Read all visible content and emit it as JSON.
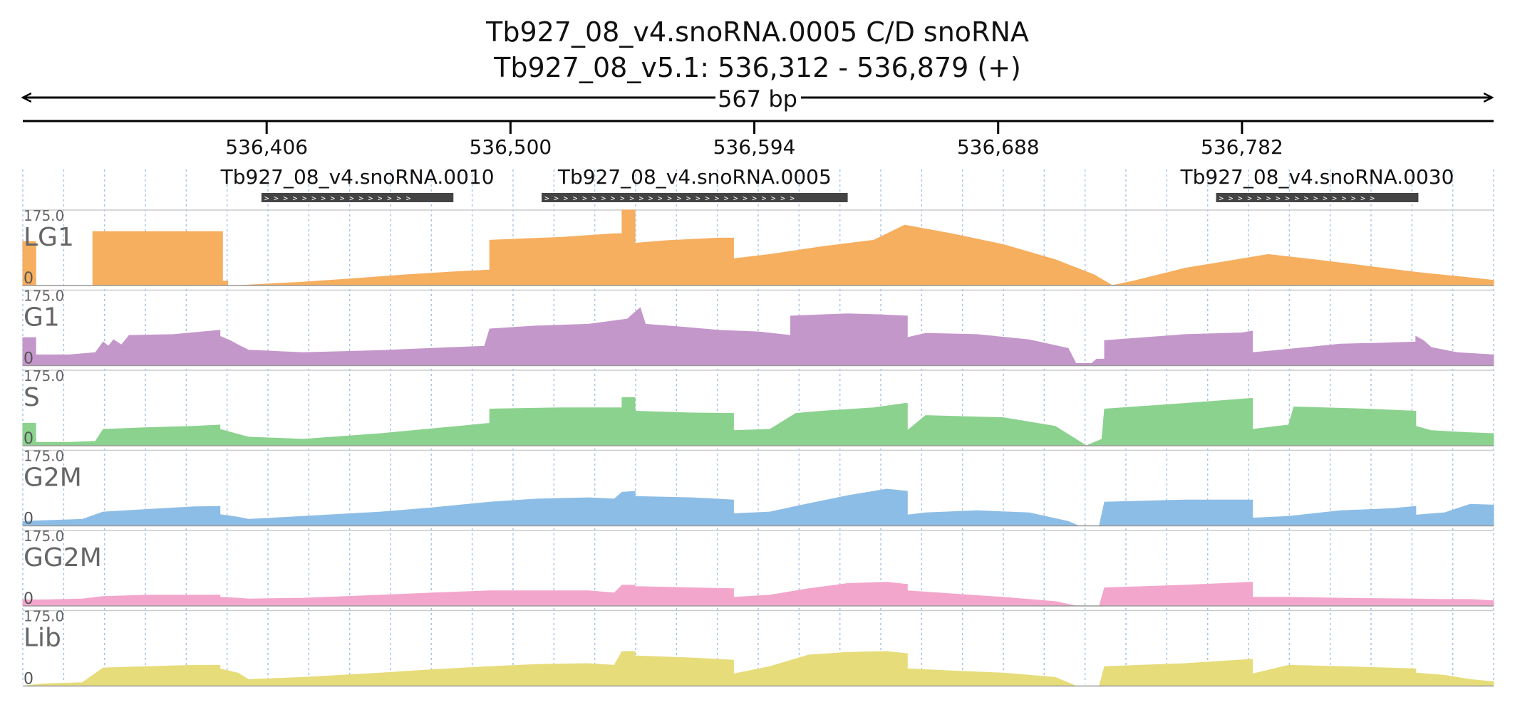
{
  "title": {
    "line1": "Tb927_08_v4.snoRNA.0005  C/D snoRNA",
    "line2": "Tb927_08_v5.1: 536,312 - 536,879 (+)"
  },
  "ruler": {
    "span_label": "567 bp"
  },
  "chart_data": {
    "type": "area",
    "region": {
      "chrom": "Tb927_08_v5.1",
      "start": 536312,
      "end": 536879,
      "strand": "+"
    },
    "x_ticks": [
      536406,
      536500,
      536594,
      536688,
      536782
    ],
    "x_tick_labels": [
      "536,406",
      "536,500",
      "536,594",
      "536,688",
      "536,782"
    ],
    "features": [
      {
        "name": "Tb927_08_v4.snoRNA.0010",
        "start": 536404,
        "end": 536478,
        "strand": "+"
      },
      {
        "name": "Tb927_08_v4.snoRNA.0005",
        "start": 536512,
        "end": 536630,
        "strand": "+"
      },
      {
        "name": "Tb927_08_v4.snoRNA.0030",
        "start": 536772,
        "end": 536850,
        "strand": "+"
      }
    ],
    "y_range": [
      0,
      175
    ],
    "y_max_label": "175.0",
    "y_min_label": "0",
    "grid": true,
    "series": [
      {
        "name": "LG1",
        "color": "#f6ae5f",
        "points": [
          [
            536312,
            102
          ],
          [
            536317,
            102
          ],
          [
            536317,
            0
          ],
          [
            536339,
            0
          ],
          [
            536339,
            125
          ],
          [
            536389,
            125
          ],
          [
            536389,
            10
          ],
          [
            536391,
            10
          ],
          [
            536391,
            0
          ],
          [
            536395,
            0
          ],
          [
            536420,
            8
          ],
          [
            536440,
            16
          ],
          [
            536460,
            25
          ],
          [
            536479,
            32
          ],
          [
            536492,
            36
          ],
          [
            536492,
            105
          ],
          [
            536520,
            112
          ],
          [
            536540,
            120
          ],
          [
            536543,
            120
          ],
          [
            536543,
            175
          ],
          [
            536548,
            175
          ],
          [
            536548,
            98
          ],
          [
            536560,
            104
          ],
          [
            536580,
            110
          ],
          [
            536586,
            110
          ],
          [
            536586,
            62
          ],
          [
            536600,
            72
          ],
          [
            536620,
            90
          ],
          [
            536640,
            105
          ],
          [
            536652,
            140
          ],
          [
            536670,
            120
          ],
          [
            536690,
            95
          ],
          [
            536710,
            60
          ],
          [
            536725,
            25
          ],
          [
            536732,
            0
          ],
          [
            536740,
            10
          ],
          [
            536760,
            40
          ],
          [
            536780,
            60
          ],
          [
            536792,
            72
          ],
          [
            536810,
            60
          ],
          [
            536830,
            45
          ],
          [
            536850,
            30
          ],
          [
            536870,
            18
          ],
          [
            536879,
            12
          ]
        ]
      },
      {
        "name": "G1",
        "color": "#c497cb",
        "points": [
          [
            536312,
            65
          ],
          [
            536317,
            65
          ],
          [
            536317,
            25
          ],
          [
            536330,
            25
          ],
          [
            536340,
            30
          ],
          [
            536343,
            55
          ],
          [
            536345,
            45
          ],
          [
            536347,
            60
          ],
          [
            536350,
            48
          ],
          [
            536353,
            70
          ],
          [
            536370,
            72
          ],
          [
            536388,
            82
          ],
          [
            536388,
            68
          ],
          [
            536392,
            58
          ],
          [
            536395,
            48
          ],
          [
            536399,
            36
          ],
          [
            536420,
            30
          ],
          [
            536450,
            35
          ],
          [
            536490,
            45
          ],
          [
            536492,
            85
          ],
          [
            536510,
            92
          ],
          [
            536530,
            96
          ],
          [
            536545,
            108
          ],
          [
            536550,
            134
          ],
          [
            536552,
            96
          ],
          [
            536565,
            90
          ],
          [
            536580,
            82
          ],
          [
            536596,
            78
          ],
          [
            536608,
            70
          ],
          [
            536608,
            115
          ],
          [
            536630,
            120
          ],
          [
            536642,
            118
          ],
          [
            536653,
            115
          ],
          [
            536653,
            65
          ],
          [
            536660,
            75
          ],
          [
            536680,
            72
          ],
          [
            536700,
            60
          ],
          [
            536715,
            40
          ],
          [
            536718,
            5
          ],
          [
            536724,
            5
          ],
          [
            536726,
            15
          ],
          [
            536729,
            15
          ],
          [
            536729,
            58
          ],
          [
            536760,
            72
          ],
          [
            536782,
            76
          ],
          [
            536786,
            80
          ],
          [
            536786,
            30
          ],
          [
            536800,
            38
          ],
          [
            536820,
            50
          ],
          [
            536835,
            52
          ],
          [
            536849,
            55
          ],
          [
            536849,
            68
          ],
          [
            536852,
            58
          ],
          [
            536855,
            42
          ],
          [
            536865,
            30
          ],
          [
            536879,
            25
          ]
        ]
      },
      {
        "name": "S",
        "color": "#8bd28e",
        "points": [
          [
            536312,
            52
          ],
          [
            536317,
            52
          ],
          [
            536317,
            8
          ],
          [
            536330,
            8
          ],
          [
            536340,
            10
          ],
          [
            536343,
            38
          ],
          [
            536360,
            42
          ],
          [
            536378,
            45
          ],
          [
            536388,
            48
          ],
          [
            536388,
            38
          ],
          [
            536394,
            28
          ],
          [
            536399,
            20
          ],
          [
            536420,
            15
          ],
          [
            536450,
            28
          ],
          [
            536480,
            45
          ],
          [
            536492,
            52
          ],
          [
            536492,
            85
          ],
          [
            536520,
            88
          ],
          [
            536540,
            88
          ],
          [
            536543,
            88
          ],
          [
            536543,
            112
          ],
          [
            536548,
            112
          ],
          [
            536548,
            80
          ],
          [
            536570,
            76
          ],
          [
            536586,
            75
          ],
          [
            536586,
            35
          ],
          [
            536600,
            38
          ],
          [
            536610,
            75
          ],
          [
            536620,
            80
          ],
          [
            536640,
            88
          ],
          [
            536652,
            98
          ],
          [
            536653,
            98
          ],
          [
            536653,
            35
          ],
          [
            536660,
            70
          ],
          [
            536690,
            65
          ],
          [
            536710,
            45
          ],
          [
            536718,
            15
          ],
          [
            536722,
            0
          ],
          [
            536728,
            15
          ],
          [
            536729,
            85
          ],
          [
            536760,
            98
          ],
          [
            536786,
            110
          ],
          [
            536786,
            38
          ],
          [
            536800,
            48
          ],
          [
            536802,
            90
          ],
          [
            536830,
            85
          ],
          [
            536849,
            80
          ],
          [
            536849,
            45
          ],
          [
            536855,
            35
          ],
          [
            536870,
            30
          ],
          [
            536879,
            28
          ]
        ]
      },
      {
        "name": "G2M",
        "color": "#8cbde6",
        "points": [
          [
            536312,
            10
          ],
          [
            536320,
            12
          ],
          [
            536335,
            15
          ],
          [
            536343,
            32
          ],
          [
            536360,
            38
          ],
          [
            536378,
            44
          ],
          [
            536388,
            45
          ],
          [
            536388,
            26
          ],
          [
            536395,
            20
          ],
          [
            536399,
            15
          ],
          [
            536420,
            22
          ],
          [
            536450,
            32
          ],
          [
            536470,
            42
          ],
          [
            536492,
            55
          ],
          [
            536510,
            62
          ],
          [
            536530,
            65
          ],
          [
            536540,
            62
          ],
          [
            536543,
            78
          ],
          [
            536548,
            80
          ],
          [
            536548,
            68
          ],
          [
            536570,
            65
          ],
          [
            536586,
            60
          ],
          [
            536586,
            28
          ],
          [
            536600,
            32
          ],
          [
            536610,
            45
          ],
          [
            536630,
            70
          ],
          [
            536645,
            85
          ],
          [
            536653,
            80
          ],
          [
            536653,
            25
          ],
          [
            536660,
            30
          ],
          [
            536680,
            35
          ],
          [
            536700,
            30
          ],
          [
            536715,
            10
          ],
          [
            536719,
            0
          ],
          [
            536727,
            0
          ],
          [
            536729,
            55
          ],
          [
            536760,
            60
          ],
          [
            536786,
            60
          ],
          [
            536786,
            18
          ],
          [
            536800,
            22
          ],
          [
            536820,
            35
          ],
          [
            536840,
            40
          ],
          [
            536849,
            45
          ],
          [
            536849,
            25
          ],
          [
            536860,
            30
          ],
          [
            536870,
            50
          ],
          [
            536879,
            48
          ]
        ]
      },
      {
        "name": "GG2M",
        "color": "#f3a6cb",
        "points": [
          [
            536312,
            14
          ],
          [
            536320,
            14
          ],
          [
            536335,
            16
          ],
          [
            536343,
            22
          ],
          [
            536360,
            25
          ],
          [
            536378,
            25
          ],
          [
            536388,
            25
          ],
          [
            536388,
            20
          ],
          [
            536395,
            18
          ],
          [
            536399,
            16
          ],
          [
            536420,
            18
          ],
          [
            536450,
            25
          ],
          [
            536470,
            30
          ],
          [
            536492,
            35
          ],
          [
            536510,
            35
          ],
          [
            536530,
            35
          ],
          [
            536540,
            30
          ],
          [
            536543,
            48
          ],
          [
            536548,
            48
          ],
          [
            536548,
            45
          ],
          [
            536570,
            42
          ],
          [
            536586,
            40
          ],
          [
            536586,
            20
          ],
          [
            536600,
            25
          ],
          [
            536615,
            40
          ],
          [
            536630,
            52
          ],
          [
            536645,
            55
          ],
          [
            536653,
            50
          ],
          [
            536653,
            35
          ],
          [
            536670,
            28
          ],
          [
            536690,
            20
          ],
          [
            536710,
            10
          ],
          [
            536718,
            0
          ],
          [
            536727,
            0
          ],
          [
            536729,
            42
          ],
          [
            536760,
            48
          ],
          [
            536786,
            55
          ],
          [
            536786,
            20
          ],
          [
            536800,
            20
          ],
          [
            536820,
            18
          ],
          [
            536849,
            16
          ],
          [
            536849,
            16
          ],
          [
            536860,
            15
          ],
          [
            536870,
            15
          ],
          [
            536879,
            12
          ]
        ]
      },
      {
        "name": "Lib",
        "color": "#e6dc7a",
        "points": [
          [
            536312,
            0
          ],
          [
            536320,
            5
          ],
          [
            536335,
            8
          ],
          [
            536343,
            42
          ],
          [
            536360,
            45
          ],
          [
            536378,
            48
          ],
          [
            536388,
            48
          ],
          [
            536388,
            40
          ],
          [
            536395,
            30
          ],
          [
            536399,
            15
          ],
          [
            536420,
            20
          ],
          [
            536450,
            30
          ],
          [
            536470,
            38
          ],
          [
            536492,
            45
          ],
          [
            536510,
            50
          ],
          [
            536530,
            52
          ],
          [
            536540,
            48
          ],
          [
            536543,
            80
          ],
          [
            536548,
            80
          ],
          [
            536548,
            70
          ],
          [
            536570,
            65
          ],
          [
            536586,
            60
          ],
          [
            536586,
            28
          ],
          [
            536600,
            45
          ],
          [
            536615,
            72
          ],
          [
            536630,
            78
          ],
          [
            536645,
            80
          ],
          [
            536653,
            75
          ],
          [
            536653,
            40
          ],
          [
            536670,
            35
          ],
          [
            536690,
            30
          ],
          [
            536710,
            20
          ],
          [
            536718,
            0
          ],
          [
            536727,
            0
          ],
          [
            536729,
            45
          ],
          [
            536760,
            52
          ],
          [
            536786,
            62
          ],
          [
            536786,
            28
          ],
          [
            536800,
            48
          ],
          [
            536820,
            45
          ],
          [
            536849,
            40
          ],
          [
            536849,
            30
          ],
          [
            536860,
            25
          ],
          [
            536870,
            15
          ],
          [
            536879,
            10
          ]
        ]
      }
    ]
  }
}
